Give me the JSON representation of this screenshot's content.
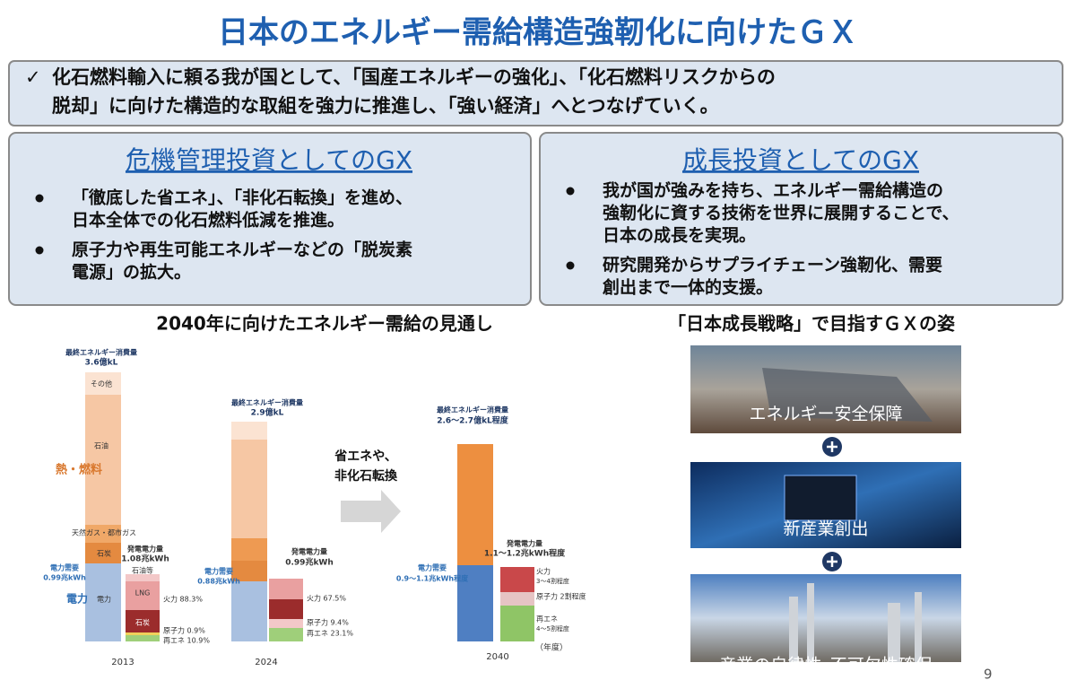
{
  "title": "日本のエネルギー需給構造強靭化に向けたＧＸ",
  "summary": {
    "mark": "✓",
    "lines": [
      "化石燃料輸入に頼る我が国として、「国産エネルギーの強化」、「化石燃料リスクからの",
      "脱却」に向けた構造的な取組を強力に推進し、「強い経済」へとつなげていく。"
    ]
  },
  "panels": [
    {
      "heading": "危機管理投資としてのGX",
      "bullets": [
        [
          "「徹底した省エネ」、「非化石転換」を進め、",
          "日本全体での化石燃料低減を推進。"
        ],
        [
          "原子力や再生可能エネルギーなどの「脱炭素",
          "電源」の拡大。"
        ]
      ]
    },
    {
      "heading": "成長投資としてのGX",
      "bullets": [
        [
          "我が国が強みを持ち、エネルギー需給構造の",
          "強靭化に資する技術を世界に展開することで、",
          "日本の成長を実現。"
        ],
        [
          "研究開発からサプライチェーン強靭化、需要",
          "創出まで一体的支援。"
        ]
      ]
    }
  ],
  "chart": {
    "title": "2040年に向けたエネルギー需給の見通し",
    "labels": [
      "最終エネルギー消費量",
      "3.6億kL",
      "その他",
      "石油",
      "熱・燃料",
      "天然ガス・都市ガス",
      "石炭",
      "電力需要",
      "0.99兆kWh",
      "電力",
      "電力",
      "発電電力量",
      "1.08兆kWh",
      "石油等",
      "LNG",
      "石炭",
      "火力 88.3%",
      "原子力 0.9%",
      "再エネ 10.9%",
      "2013",
      "最終エネルギー消費量",
      "2.9億kL",
      "電力需要",
      "0.88兆kWh",
      "発電電力量",
      "0.99兆kWh",
      "火力 67.5%",
      "原子力 9.4%",
      "再エネ 23.1%",
      "2024",
      "省エネや、",
      "非化石転換",
      "最終エネルギー消費量",
      "2.6～2.7億kL程度",
      "電力需要",
      "0.9～1.1兆kWh程度",
      "発電電力量",
      "1.1～1.2兆kWh程度",
      "火力",
      "3～4割程度",
      "原子力 2割程度",
      "再エネ",
      "4～5割程度",
      "2040",
      "（年度）"
    ]
  },
  "vision": {
    "title": "「日本成長戦略」で目指すＧＸの姿",
    "items": [
      "エネルギー安全保障",
      "新産業創出",
      "産業の自律性･不可欠性確保"
    ]
  },
  "page_number": "9"
}
